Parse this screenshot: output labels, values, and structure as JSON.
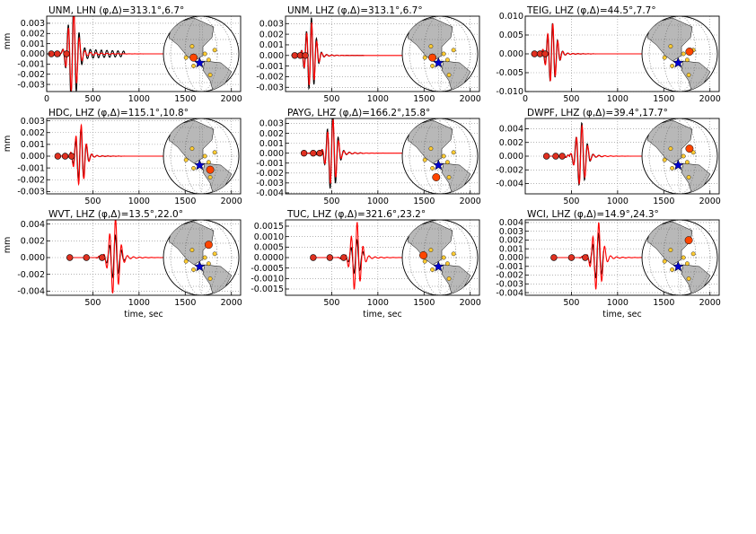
{
  "figure": {
    "ylabel": "mm",
    "xlabel": "time, sec"
  },
  "colors": {
    "data": "#000000",
    "synthetic": "#ff0000",
    "station_marker": "#ff4500",
    "other_station": "#ffcc33",
    "event_star": "#0000cd",
    "land": "#b8b8b8",
    "grid": "#888888"
  },
  "chart_data": [
    {
      "type": "line",
      "title": "UNM, LHN (φ,Δ)=313.1°,6.7°",
      "xlim": [
        0,
        2100
      ],
      "ylim": [
        -0.0037,
        0.0037
      ],
      "xticks": [
        0,
        500,
        1000,
        1500,
        2000
      ],
      "yticks": [
        "0.003",
        "0.002",
        "0.001",
        "0.000",
        "-0.001",
        "-0.002",
        "-0.003"
      ],
      "ytick_values": [
        0.003,
        0.002,
        0.001,
        0.0,
        -0.001,
        -0.002,
        -0.003
      ],
      "show_ylabel": true,
      "show_xlabel": false,
      "data_end": 850,
      "arrival_times": [
        50,
        115,
        215
      ],
      "wave": {
        "center": 280,
        "amp_obs": 0.0045,
        "amp_syn": 0.0038,
        "period": 60,
        "decay_obs": 0.0012,
        "decay_syn": 0.006
      },
      "globe": {
        "station": [
          0.4,
          0.55
        ],
        "star": [
          0.48,
          0.62
        ]
      },
      "series": [
        {
          "name": "",
          "kind": "data"
        },
        {
          "name": "",
          "kind": "synthetic"
        }
      ]
    },
    {
      "type": "line",
      "title": "UNM, LHZ (φ,Δ)=313.1°,6.7°",
      "xlim": [
        0,
        2100
      ],
      "ylim": [
        -0.0034,
        0.0037
      ],
      "xticks": [
        500,
        1000,
        1500,
        2000
      ],
      "yticks": [
        "0.003",
        "0.002",
        "0.001",
        "0.000",
        "-0.001",
        "-0.002",
        "-0.003"
      ],
      "ytick_values": [
        0.003,
        0.002,
        0.001,
        0.0,
        -0.001,
        -0.002,
        -0.003
      ],
      "show_ylabel": false,
      "show_xlabel": false,
      "data_end": 850,
      "arrival_times": [
        100,
        160,
        215
      ],
      "wave": {
        "center": 270,
        "amp_obs": 0.0033,
        "amp_syn": 0.0029,
        "period": 55,
        "decay_obs": 0.009,
        "decay_syn": 0.009
      },
      "globe": {
        "station": [
          0.4,
          0.55
        ],
        "star": [
          0.48,
          0.62
        ]
      },
      "series": [
        {
          "name": "",
          "kind": "data"
        },
        {
          "name": "",
          "kind": "synthetic"
        }
      ]
    },
    {
      "type": "line",
      "title": "TEIG, LHZ (φ,Δ)=44.5°,7.7°",
      "xlim": [
        0,
        2100
      ],
      "ylim": [
        -0.01,
        0.01
      ],
      "xticks": [
        0,
        500,
        1000,
        1500,
        2000
      ],
      "yticks": [
        "0.010",
        "0.005",
        "0.000",
        "-0.005",
        "-0.010"
      ],
      "ytick_values": [
        0.01,
        0.005,
        0.0,
        -0.005,
        -0.01
      ],
      "show_ylabel": false,
      "show_xlabel": false,
      "data_end": 850,
      "arrival_times": [
        100,
        160,
        215
      ],
      "wave": {
        "center": 285,
        "amp_obs": 0.0075,
        "amp_syn": 0.0075,
        "period": 55,
        "decay_obs": 0.009,
        "decay_syn": 0.009
      },
      "globe": {
        "station": [
          0.63,
          0.47
        ],
        "star": [
          0.48,
          0.62
        ]
      },
      "series": [
        {
          "name": "",
          "kind": "data"
        },
        {
          "name": "",
          "kind": "synthetic"
        }
      ]
    },
    {
      "type": "line",
      "title": "HDC, LHZ (φ,Δ)=115.1°,10.8°",
      "xlim": [
        0,
        2100
      ],
      "ylim": [
        -0.0032,
        0.0032
      ],
      "xticks": [
        500,
        1000,
        1500,
        2000
      ],
      "yticks": [
        "0.003",
        "0.002",
        "0.001",
        "0.000",
        "-0.001",
        "-0.002",
        "-0.003"
      ],
      "ytick_values": [
        0.003,
        0.002,
        0.001,
        0.0,
        -0.001,
        -0.002,
        -0.003
      ],
      "show_ylabel": true,
      "show_xlabel": false,
      "data_end": 850,
      "arrival_times": [
        120,
        200,
        270
      ],
      "wave": {
        "center": 360,
        "amp_obs": 0.0022,
        "amp_syn": 0.0025,
        "period": 58,
        "decay_obs": 0.009,
        "decay_syn": 0.009
      },
      "globe": {
        "station": [
          0.62,
          0.68
        ],
        "star": [
          0.48,
          0.62
        ]
      },
      "series": [
        {
          "name": "",
          "kind": "data"
        },
        {
          "name": "",
          "kind": "synthetic"
        }
      ]
    },
    {
      "type": "line",
      "title": "PAYG, LHZ (φ,Δ)=166.2°,15.8°",
      "xlim": [
        0,
        2100
      ],
      "ylim": [
        -0.0041,
        0.0035
      ],
      "xticks": [
        500,
        1000,
        1500,
        2000
      ],
      "yticks": [
        "0.003",
        "0.002",
        "0.001",
        "0.000",
        "-0.001",
        "-0.002",
        "-0.003",
        "-0.004"
      ],
      "ytick_values": [
        0.003,
        0.002,
        0.001,
        0.0,
        -0.001,
        -0.002,
        -0.003,
        -0.004
      ],
      "show_ylabel": false,
      "show_xlabel": false,
      "data_end": 850,
      "arrival_times": [
        200,
        300,
        370
      ],
      "wave": {
        "center": 500,
        "amp_obs": 0.0038,
        "amp_syn": 0.0032,
        "period": 60,
        "decay_obs": 0.008,
        "decay_syn": 0.008
      },
      "globe": {
        "station": [
          0.45,
          0.78
        ],
        "star": [
          0.48,
          0.62
        ]
      },
      "series": [
        {
          "name": "",
          "kind": "data"
        },
        {
          "name": "",
          "kind": "synthetic"
        }
      ]
    },
    {
      "type": "line",
      "title": "DWPF, LHZ (φ,Δ)=39.4°,17.7°",
      "xlim": [
        0,
        2100
      ],
      "ylim": [
        -0.0055,
        0.0055
      ],
      "xticks": [
        500,
        1000,
        1500,
        2000
      ],
      "yticks": [
        "0.004",
        "0.002",
        "0.000",
        "-0.002",
        "-0.004"
      ],
      "ytick_values": [
        0.004,
        0.002,
        0.0,
        -0.002,
        -0.004
      ],
      "show_ylabel": false,
      "show_xlabel": false,
      "data_end": 850,
      "arrival_times": [
        230,
        330,
        400
      ],
      "wave": {
        "center": 600,
        "amp_obs": 0.0045,
        "amp_syn": 0.0042,
        "period": 62,
        "decay_obs": 0.008,
        "decay_syn": 0.008
      },
      "globe": {
        "station": [
          0.63,
          0.4
        ],
        "star": [
          0.48,
          0.62
        ]
      },
      "series": [
        {
          "name": "",
          "kind": "data"
        },
        {
          "name": "",
          "kind": "synthetic"
        }
      ]
    },
    {
      "type": "line",
      "title": "WVT, LHZ (φ,Δ)=13.5°,22.0°",
      "xlim": [
        0,
        2100
      ],
      "ylim": [
        -0.0045,
        0.0045
      ],
      "xticks": [
        500,
        1000,
        1500,
        2000
      ],
      "yticks": [
        "0.004",
        "0.002",
        "0.000",
        "-0.002",
        "-0.004"
      ],
      "ytick_values": [
        0.004,
        0.002,
        0.0,
        -0.002,
        -0.004
      ],
      "show_ylabel": true,
      "show_xlabel": true,
      "data_end": 850,
      "arrival_times": [
        250,
        430,
        600
      ],
      "wave": {
        "center": 730,
        "amp_obs": 0.0025,
        "amp_syn": 0.0045,
        "period": 65,
        "decay_obs": 0.008,
        "decay_syn": 0.008
      },
      "globe": {
        "station": [
          0.6,
          0.33
        ],
        "star": [
          0.48,
          0.62
        ]
      },
      "series": [
        {
          "name": "",
          "kind": "data"
        },
        {
          "name": "",
          "kind": "synthetic"
        }
      ]
    },
    {
      "type": "line",
      "title": "TUC, LHZ (φ,Δ)=321.6°,23.2°",
      "xlim": [
        0,
        2100
      ],
      "ylim": [
        -0.0018,
        0.0018
      ],
      "xticks": [
        500,
        1000,
        1500,
        2000
      ],
      "yticks": [
        "0.0015",
        "0.0010",
        "0.0005",
        "0.0000",
        "-0.0005",
        "-0.0010",
        "-0.0015"
      ],
      "ytick_values": [
        0.0015,
        0.001,
        0.0005,
        0.0,
        -0.0005,
        -0.001,
        -0.0015
      ],
      "show_ylabel": false,
      "show_xlabel": true,
      "data_end": 850,
      "arrival_times": [
        300,
        480,
        630
      ],
      "wave": {
        "center": 760,
        "amp_obs": 0.0008,
        "amp_syn": 0.0016,
        "period": 65,
        "decay_obs": 0.008,
        "decay_syn": 0.008
      },
      "globe": {
        "station": [
          0.28,
          0.47
        ],
        "star": [
          0.48,
          0.62
        ]
      },
      "series": [
        {
          "name": "",
          "kind": "data"
        },
        {
          "name": "",
          "kind": "synthetic"
        }
      ]
    },
    {
      "type": "line",
      "title": "WCI, LHZ (φ,Δ)=14.9°,24.3°",
      "xlim": [
        0,
        2100
      ],
      "ylim": [
        -0.0043,
        0.0043
      ],
      "xticks": [
        500,
        1000,
        1500,
        2000
      ],
      "yticks": [
        "0.004",
        "0.003",
        "0.002",
        "0.001",
        "0.000",
        "-0.001",
        "-0.002",
        "-0.003",
        "-0.004"
      ],
      "ytick_values": [
        0.004,
        0.003,
        0.002,
        0.001,
        0.0,
        -0.001,
        -0.002,
        -0.003,
        -0.004
      ],
      "show_ylabel": false,
      "show_xlabel": true,
      "data_end": 850,
      "arrival_times": [
        310,
        500,
        650
      ],
      "wave": {
        "center": 780,
        "amp_obs": 0.0025,
        "amp_syn": 0.0038,
        "period": 65,
        "decay_obs": 0.008,
        "decay_syn": 0.008
      },
      "globe": {
        "station": [
          0.62,
          0.27
        ],
        "star": [
          0.48,
          0.62
        ]
      },
      "series": [
        {
          "name": "",
          "kind": "data"
        },
        {
          "name": "",
          "kind": "synthetic"
        }
      ]
    }
  ]
}
